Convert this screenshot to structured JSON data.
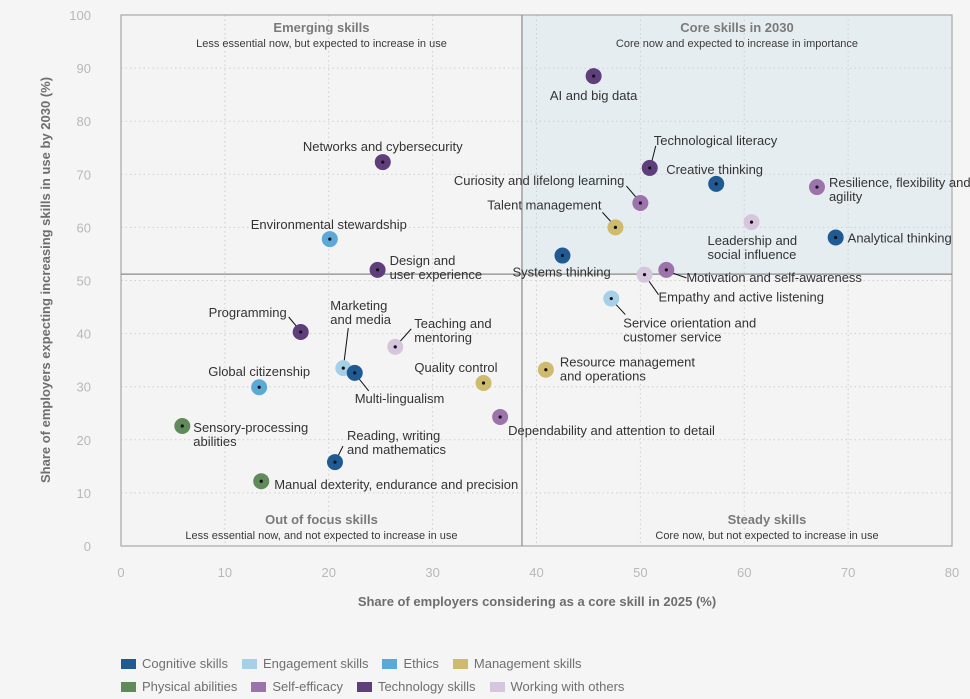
{
  "chart_data": {
    "type": "scatter",
    "title": "",
    "xlabel": "Share of employers considering as a core skill in 2025 (%)",
    "ylabel": "Share of employers expecting increasing skills in use by 2030 (%)",
    "xlim": [
      0,
      80
    ],
    "ylim": [
      0,
      100
    ],
    "x_ticks": [
      0,
      10,
      20,
      30,
      40,
      50,
      60,
      70,
      80
    ],
    "y_ticks": [
      0,
      10,
      20,
      30,
      40,
      50,
      60,
      70,
      80,
      90,
      100
    ],
    "grid": true,
    "quadrant_split": {
      "x": 38.6,
      "y": 51.2
    },
    "quadrants": [
      {
        "id": "emerging",
        "title": "Emerging skills",
        "subtitle": "Less essential now, but expected to increase in use",
        "position": "top-left"
      },
      {
        "id": "core",
        "title": "Core skills in 2030",
        "subtitle": "Core now and expected to increase in importance",
        "position": "top-right"
      },
      {
        "id": "out-of-focus",
        "title": "Out of focus skills",
        "subtitle": "Less essential now, and not expected to increase in use",
        "position": "bottom-left"
      },
      {
        "id": "steady",
        "title": "Steady skills",
        "subtitle": "Core now, but not expected to increase in use",
        "position": "bottom-right"
      }
    ],
    "categories": [
      {
        "name": "Cognitive skills",
        "color": "#1f5b92"
      },
      {
        "name": "Engagement skills",
        "color": "#a6d0e8"
      },
      {
        "name": "Ethics",
        "color": "#5aa9d8"
      },
      {
        "name": "Management skills",
        "color": "#cfbb6e"
      },
      {
        "name": "Physical abilities",
        "color": "#5f8a5a"
      },
      {
        "name": "Self-efficacy",
        "color": "#9c74ab"
      },
      {
        "name": "Technology skills",
        "color": "#5e3f7c"
      },
      {
        "name": "Working with others",
        "color": "#d5c6de"
      }
    ],
    "points": [
      {
        "label": "AI and big data",
        "category": "Technology skills",
        "x": 45.5,
        "y": 88.5
      },
      {
        "label": "Technological literacy",
        "category": "Technology skills",
        "x": 50.9,
        "y": 71.2
      },
      {
        "label": "Creative thinking",
        "category": "Cognitive skills",
        "x": 57.3,
        "y": 68.2
      },
      {
        "label": "Curiosity and lifelong learning",
        "category": "Self-efficacy",
        "x": 50.0,
        "y": 64.6
      },
      {
        "label": "Talent management",
        "category": "Management skills",
        "x": 47.6,
        "y": 60.0
      },
      {
        "label": "Resilience, flexibility and agility",
        "category": "Self-efficacy",
        "x": 67.0,
        "y": 67.6
      },
      {
        "label": "Leadership and social influence",
        "category": "Working with others",
        "x": 60.7,
        "y": 61.0
      },
      {
        "label": "Analytical thinking",
        "category": "Cognitive skills",
        "x": 68.8,
        "y": 58.1
      },
      {
        "label": "Systems thinking",
        "category": "Cognitive skills",
        "x": 42.5,
        "y": 54.7
      },
      {
        "label": "Empathy and active listening",
        "category": "Working with others",
        "x": 50.4,
        "y": 51.1
      },
      {
        "label": "Motivation and self-awareness",
        "category": "Self-efficacy",
        "x": 52.5,
        "y": 52.0
      },
      {
        "label": "Service orientation and customer service",
        "category": "Engagement skills",
        "x": 47.2,
        "y": 46.6
      },
      {
        "label": "Resource management and operations",
        "category": "Management skills",
        "x": 40.9,
        "y": 33.2
      },
      {
        "label": "Quality control",
        "category": "Management skills",
        "x": 34.9,
        "y": 30.7
      },
      {
        "label": "Dependability and attention to detail",
        "category": "Self-efficacy",
        "x": 36.5,
        "y": 24.3
      },
      {
        "label": "Networks and cybersecurity",
        "category": "Technology skills",
        "x": 25.2,
        "y": 72.3
      },
      {
        "label": "Environmental stewardship",
        "category": "Ethics",
        "x": 20.1,
        "y": 57.8
      },
      {
        "label": "Design and user experience",
        "category": "Technology skills",
        "x": 24.7,
        "y": 52.0
      },
      {
        "label": "Programming",
        "category": "Technology skills",
        "x": 17.3,
        "y": 40.3
      },
      {
        "label": "Marketing and media",
        "category": "Engagement skills",
        "x": 21.4,
        "y": 33.5
      },
      {
        "label": "Multi-lingualism",
        "category": "Cognitive skills",
        "x": 22.5,
        "y": 32.6
      },
      {
        "label": "Teaching and mentoring",
        "category": "Working with others",
        "x": 26.4,
        "y": 37.5
      },
      {
        "label": "Global citizenship",
        "category": "Ethics",
        "x": 13.3,
        "y": 29.9
      },
      {
        "label": "Sensory-processing abilities",
        "category": "Physical abilities",
        "x": 5.9,
        "y": 22.6
      },
      {
        "label": "Reading, writing and mathematics",
        "category": "Cognitive skills",
        "x": 20.6,
        "y": 15.8
      },
      {
        "label": "Manual dexterity, endurance and precision",
        "category": "Physical abilities",
        "x": 13.5,
        "y": 12.2
      }
    ],
    "legend": {
      "placement": "bottom-left"
    }
  }
}
